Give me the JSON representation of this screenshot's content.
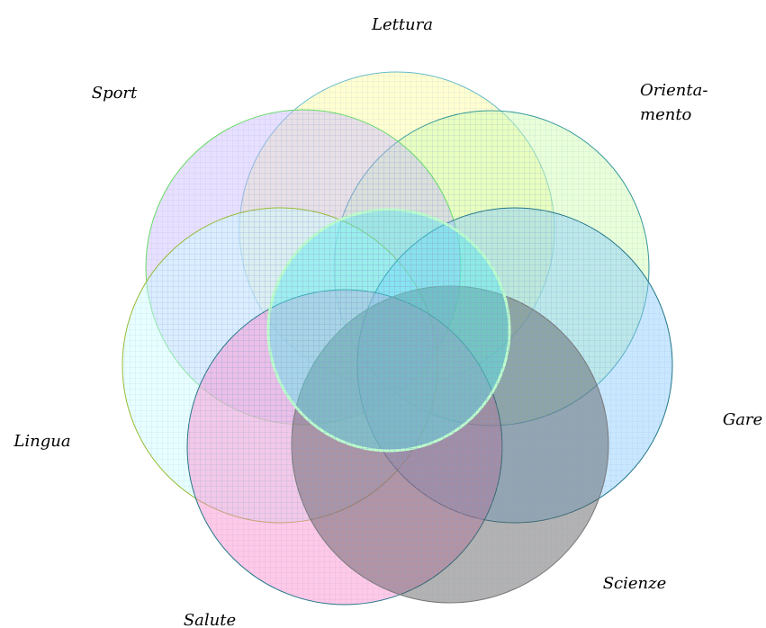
{
  "labels": [
    {
      "lines": [
        "Lettura"
      ]
    },
    {
      "lines": [
        "Sport"
      ]
    },
    {
      "lines": [
        "Orienta-",
        "mento"
      ]
    },
    {
      "lines": [
        "Gare"
      ]
    },
    {
      "lines": [
        "Lingua"
      ]
    },
    {
      "lines": [
        "Salute"
      ]
    },
    {
      "lines": [
        "Scienze"
      ]
    }
  ]
}
